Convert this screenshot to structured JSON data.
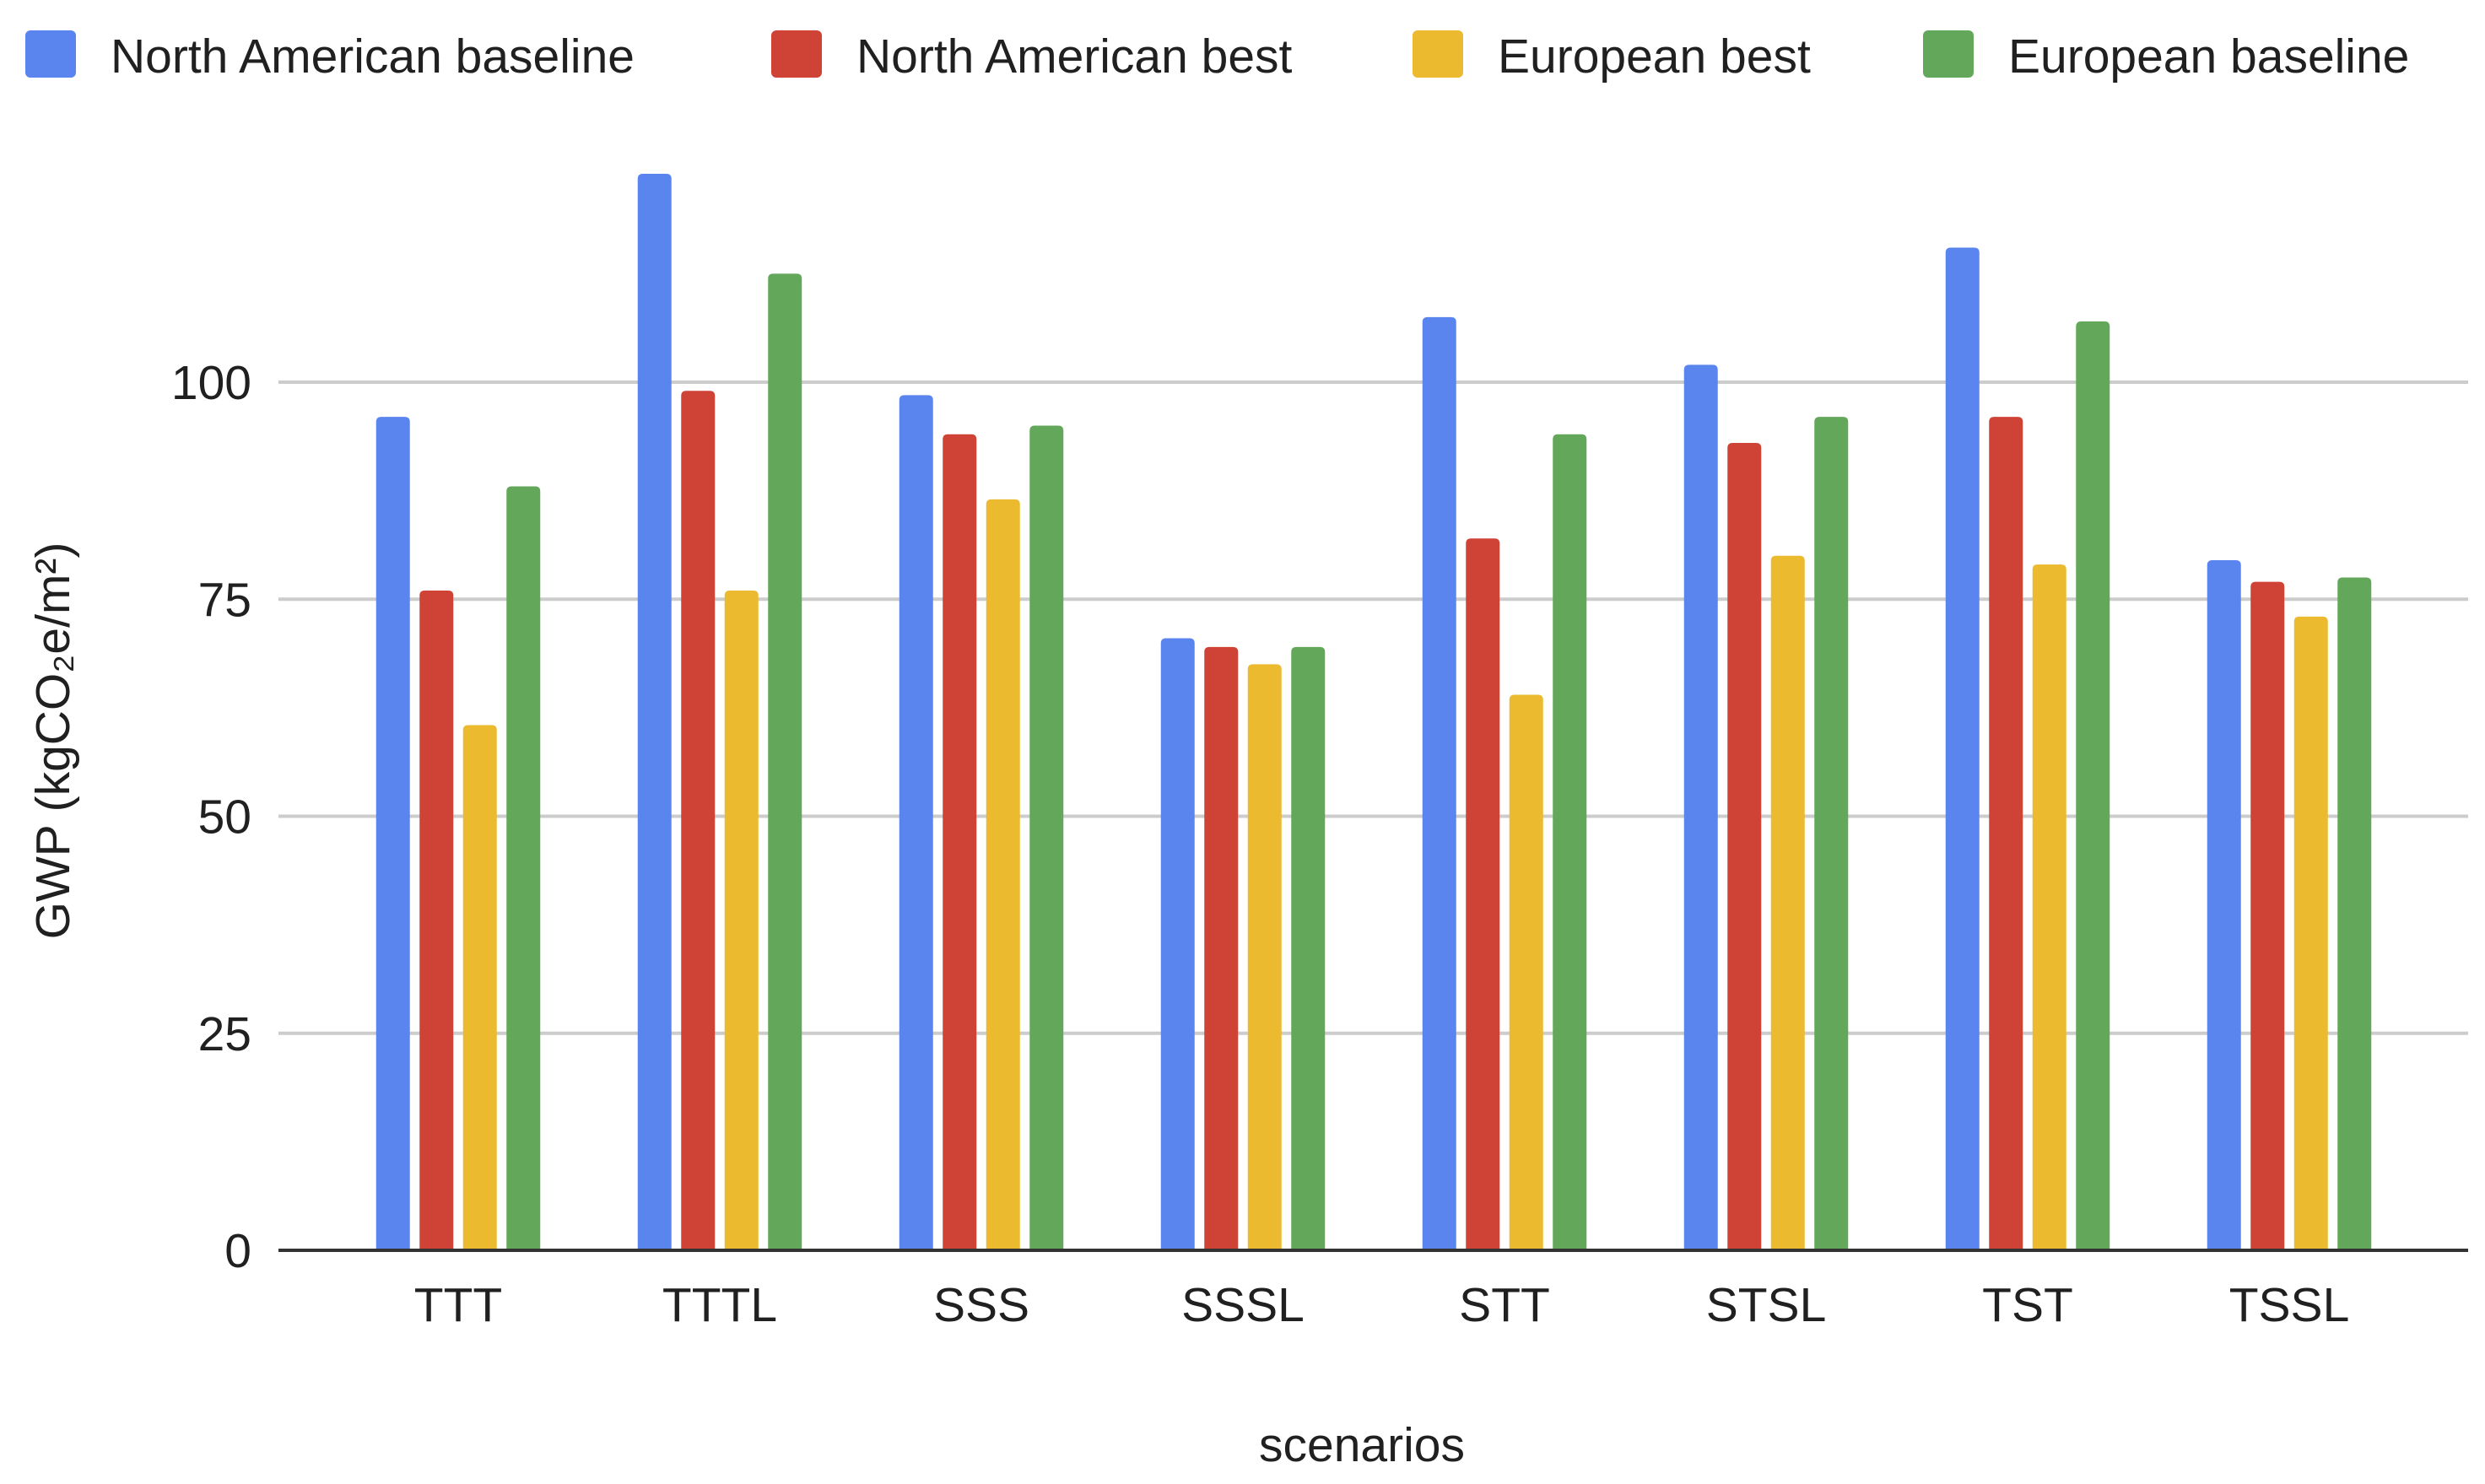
{
  "colors": {
    "north_american_baseline": "#5B85EE",
    "north_american_best": "#CF4236",
    "european_best": "#EBBA2F",
    "european_baseline": "#63A85A"
  },
  "chart_data": {
    "type": "bar",
    "title": "",
    "xlabel": "scenarios",
    "ylabel": "GWP (kgCO₂e/m²)",
    "ylim": [
      0,
      125
    ],
    "yticks": [
      0,
      25,
      50,
      75,
      100
    ],
    "grid": true,
    "legend_position": "top",
    "categories": [
      "TTT",
      "TTTL",
      "SSS",
      "SSSL",
      "STT",
      "STSL",
      "TST",
      "TSSL"
    ],
    "series": [
      {
        "name": "North American baseline",
        "color_key": "north_american_baseline",
        "values": [
          96,
          124,
          98.5,
          70.5,
          107.5,
          102,
          115.5,
          79.5
        ]
      },
      {
        "name": "North American best",
        "color_key": "north_american_best",
        "values": [
          76,
          99,
          94,
          69.5,
          82,
          93,
          96,
          77
        ]
      },
      {
        "name": "European best",
        "color_key": "european_best",
        "values": [
          60.5,
          76,
          86.5,
          67.5,
          64,
          80,
          79,
          73
        ]
      },
      {
        "name": "European baseline",
        "color_key": "european_baseline",
        "values": [
          88,
          112.5,
          95,
          69.5,
          94,
          96,
          107,
          77.5
        ]
      }
    ]
  }
}
